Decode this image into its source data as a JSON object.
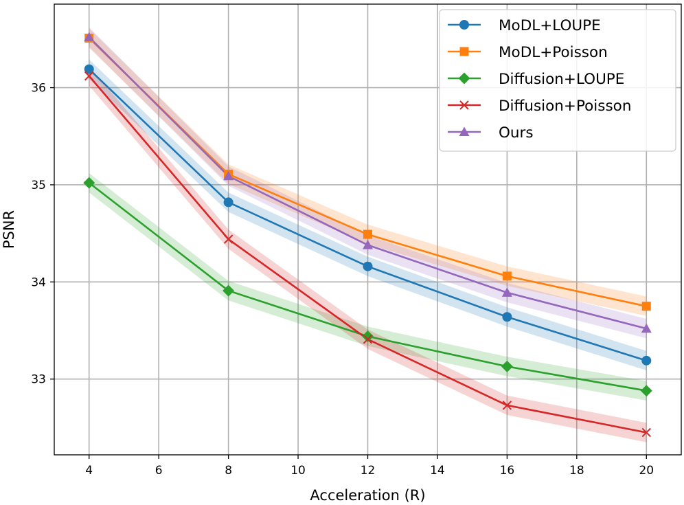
{
  "chart_data": {
    "type": "line",
    "xlabel": "Acceleration (R)",
    "ylabel": "PSNR",
    "x": [
      4,
      8,
      12,
      16,
      20
    ],
    "xlim": [
      3.0,
      21.0
    ],
    "ylim": [
      32.22,
      36.86
    ],
    "xticks": [
      4,
      6,
      8,
      10,
      12,
      14,
      16,
      18,
      20
    ],
    "yticks": [
      33,
      34,
      35,
      36
    ],
    "grid": true,
    "legend_position": "top-right",
    "series": [
      {
        "name": "MoDL+LOUPE",
        "color": "#1f77b4",
        "marker": "circle",
        "values": [
          36.19,
          34.82,
          34.16,
          33.64,
          33.19
        ],
        "band": 0.1
      },
      {
        "name": "MoDL+Poisson",
        "color": "#ff7f0e",
        "marker": "square",
        "values": [
          36.51,
          35.11,
          34.49,
          34.06,
          33.75
        ],
        "band": 0.1
      },
      {
        "name": "Diffusion+LOUPE",
        "color": "#2ca02c",
        "marker": "diamond",
        "values": [
          35.02,
          33.91,
          33.44,
          33.13,
          32.88
        ],
        "band": 0.1
      },
      {
        "name": "Diffusion+Poisson",
        "color": "#d62728",
        "marker": "x",
        "values": [
          36.12,
          34.44,
          33.41,
          32.73,
          32.45
        ],
        "band": 0.1
      },
      {
        "name": "Ours",
        "color": "#9467bd",
        "marker": "triangle",
        "values": [
          36.52,
          35.09,
          34.38,
          33.89,
          33.52
        ],
        "band": 0.1
      }
    ]
  }
}
